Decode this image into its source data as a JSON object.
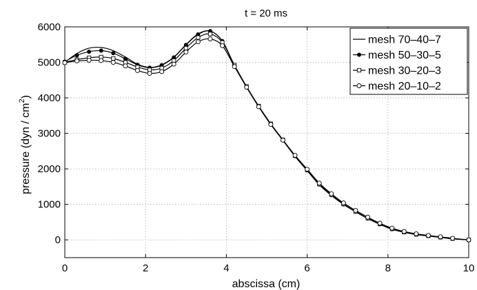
{
  "chart_data": {
    "type": "line",
    "title": "t = 20 ms",
    "xlabel": "abscissa (cm)",
    "ylabel": "pressure (dyn / cm²)",
    "ylabel_main": "pressure (dyn / cm",
    "ylabel_sup": "2",
    "ylabel_close": ")",
    "xlim": [
      0,
      10
    ],
    "ylim": [
      -500,
      6000
    ],
    "xticks": [
      0,
      2,
      4,
      6,
      8,
      10
    ],
    "yticks": [
      0,
      1000,
      2000,
      3000,
      4000,
      5000,
      6000
    ],
    "xtick_labels": [
      "0",
      "2",
      "4",
      "6",
      "8",
      "10"
    ],
    "ytick_labels": [
      "0",
      "1000",
      "2000",
      "3000",
      "4000",
      "5000",
      "6000"
    ],
    "grid": true,
    "legend_position": "top-right",
    "series": [
      {
        "name": "mesh 70–40–7",
        "marker": "none",
        "x": [
          0,
          0.3,
          0.6,
          0.9,
          1.2,
          1.5,
          1.8,
          2.1,
          2.4,
          2.7,
          3.0,
          3.3,
          3.6,
          3.9,
          4.2,
          4.5,
          4.8,
          5.1,
          5.4,
          5.7,
          6.0,
          6.3,
          6.6,
          6.9,
          7.2,
          7.5,
          7.8,
          8.1,
          8.4,
          8.7,
          9.0,
          9.3,
          9.6,
          10.0
        ],
        "y": [
          5000,
          5250,
          5400,
          5420,
          5330,
          5150,
          4950,
          4860,
          4930,
          5150,
          5500,
          5800,
          5880,
          5600,
          4900,
          4300,
          3750,
          3250,
          2800,
          2350,
          1950,
          1550,
          1250,
          1000,
          790,
          600,
          440,
          300,
          215,
          150,
          110,
          70,
          30,
          0
        ]
      },
      {
        "name": "mesh 50–30–5",
        "marker": "filled-circle",
        "x": [
          0,
          0.3,
          0.6,
          0.9,
          1.2,
          1.5,
          1.8,
          2.1,
          2.4,
          2.7,
          3.0,
          3.3,
          3.6,
          3.9,
          4.2,
          4.5,
          4.8,
          5.1,
          5.4,
          5.7,
          6.0,
          6.3,
          6.6,
          6.9,
          7.2,
          7.5,
          7.8,
          8.1,
          8.4,
          8.7,
          9.0,
          9.3,
          9.6,
          10.0
        ],
        "y": [
          5020,
          5200,
          5300,
          5330,
          5260,
          5100,
          4930,
          4850,
          4920,
          5140,
          5490,
          5790,
          5880,
          5600,
          4920,
          4310,
          3760,
          3260,
          2810,
          2360,
          1960,
          1560,
          1260,
          1000,
          790,
          600,
          440,
          300,
          215,
          150,
          110,
          70,
          30,
          0
        ]
      },
      {
        "name": "mesh 30–20–3",
        "marker": "square",
        "x": [
          0,
          0.3,
          0.6,
          0.9,
          1.2,
          1.5,
          1.8,
          2.1,
          2.4,
          2.7,
          3.0,
          3.3,
          3.6,
          3.9,
          4.2,
          4.5,
          4.8,
          5.1,
          5.4,
          5.7,
          6.0,
          6.3,
          6.6,
          6.9,
          7.2,
          7.5,
          7.8,
          8.1,
          8.4,
          8.7,
          9.0,
          9.3,
          9.6,
          10.0
        ],
        "y": [
          5000,
          5080,
          5130,
          5150,
          5110,
          5000,
          4870,
          4790,
          4840,
          5050,
          5400,
          5700,
          5800,
          5560,
          4920,
          4320,
          3770,
          3270,
          2820,
          2370,
          1970,
          1570,
          1270,
          1010,
          800,
          610,
          450,
          310,
          220,
          155,
          115,
          75,
          35,
          0
        ]
      },
      {
        "name": "mesh 20–10–2",
        "marker": "open-circle",
        "x": [
          0,
          0.3,
          0.6,
          0.9,
          1.2,
          1.5,
          1.8,
          2.1,
          2.4,
          2.7,
          3.0,
          3.3,
          3.6,
          3.9,
          4.2,
          4.5,
          4.8,
          5.1,
          5.4,
          5.7,
          6.0,
          6.3,
          6.6,
          6.9,
          7.2,
          7.5,
          7.8,
          8.1,
          8.4,
          8.7,
          9.0,
          9.3,
          9.6,
          10.0
        ],
        "y": [
          4990,
          5040,
          5060,
          5050,
          5000,
          4900,
          4770,
          4690,
          4740,
          4950,
          5290,
          5580,
          5660,
          5470,
          4880,
          4300,
          3750,
          3250,
          2810,
          2380,
          1990,
          1600,
          1300,
          1040,
          830,
          640,
          470,
          330,
          235,
          170,
          125,
          85,
          45,
          0
        ]
      }
    ]
  }
}
